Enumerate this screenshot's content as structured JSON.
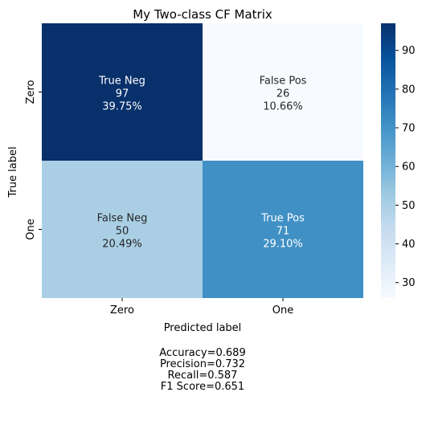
{
  "chart_data": {
    "type": "heatmap",
    "title": "My Two-class CF Matrix",
    "xlabel": "Predicted label",
    "ylabel": "True label",
    "x_categories": [
      "Zero",
      "One"
    ],
    "y_categories": [
      "Zero",
      "One"
    ],
    "cells": [
      [
        {
          "label": "True Neg",
          "count": "97",
          "percent": "39.75%",
          "value": 97
        },
        {
          "label": "False Pos",
          "count": "26",
          "percent": "10.66%",
          "value": 26
        }
      ],
      [
        {
          "label": "False Neg",
          "count": "50",
          "percent": "20.49%",
          "value": 50
        },
        {
          "label": "True Pos",
          "count": "71",
          "percent": "29.10%",
          "value": 71
        }
      ]
    ],
    "colorbar": {
      "min": 26,
      "max": 97,
      "ticks": [
        "30",
        "40",
        "50",
        "60",
        "70",
        "80",
        "90"
      ],
      "colormap": "Blues"
    },
    "metrics": [
      "Accuracy=0.689",
      "Precision=0.732",
      "Recall=0.587",
      "F1 Score=0.651"
    ]
  }
}
